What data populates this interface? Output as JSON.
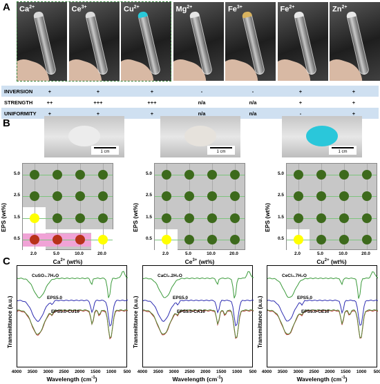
{
  "panelA": {
    "label": "A",
    "ions": [
      {
        "base": "Ca",
        "charge": "2+",
        "cap_color": "#d9d9d9"
      },
      {
        "base": "Ce",
        "charge": "3+",
        "cap_color": "#dcdcdc"
      },
      {
        "base": "Cu",
        "charge": "2+",
        "cap_color": "#29c8d8"
      },
      {
        "base": "Mg",
        "charge": "2+",
        "cap_color": "#e6e6e6"
      },
      {
        "base": "Fe",
        "charge": "3+",
        "cap_color": "#d8b25e"
      },
      {
        "base": "Fe",
        "charge": "2+",
        "cap_color": "#e8e8e8"
      },
      {
        "base": "Zn",
        "charge": "2+",
        "cap_color": "#e8e8e8"
      }
    ],
    "table": [
      {
        "label": "INVERSION",
        "values": [
          "+",
          "+",
          "+",
          "-",
          "-",
          "+",
          "+"
        ]
      },
      {
        "label": "STRENGTH",
        "values": [
          "++",
          "+++",
          "+++",
          "n/a",
          "n/a",
          "+",
          "+"
        ]
      },
      {
        "label": "UNIFORMITY",
        "values": [
          "+",
          "+",
          "+",
          "n/a",
          "n/a",
          "-",
          "+"
        ]
      }
    ]
  },
  "panelB": {
    "label": "B",
    "scale_bar": "1 cm",
    "gel_colors": [
      "#ececec",
      "#e6e2dc",
      "#2ac7da"
    ],
    "ylabel": "EPS (wt%)",
    "yticks": [
      "5.0",
      "2.5",
      "1.5",
      "0.5"
    ],
    "xticks": [
      "2.0",
      "5.0",
      "10.0",
      "20.0"
    ],
    "colors": {
      "green": "#3d6a1c",
      "yellow": "#ffff00",
      "red": "#b8321a",
      "pink": "#f0a3d6",
      "white": "#ffffff"
    },
    "grids": [
      {
        "xlabel_base": "Ca",
        "xlabel_sup": "2+",
        "xlabel_unit": " (wt%)",
        "dots": [
          [
            "green",
            "green",
            "green",
            "green"
          ],
          [
            "green",
            "green",
            "green",
            "green"
          ],
          [
            "yellow",
            "green",
            "green",
            "green"
          ],
          [
            "red",
            "red",
            "red",
            "yellow"
          ]
        ]
      },
      {
        "xlabel_base": "Ce",
        "xlabel_sup": "3+",
        "xlabel_unit": " (wt%)",
        "dots": [
          [
            "green",
            "green",
            "green",
            "green"
          ],
          [
            "green",
            "green",
            "green",
            "green"
          ],
          [
            "green",
            "green",
            "green",
            "green"
          ],
          [
            "yellow",
            "green",
            "green",
            "green"
          ]
        ]
      },
      {
        "xlabel_base": "Cu",
        "xlabel_sup": "2+",
        "xlabel_unit": " (wt%)",
        "dots": [
          [
            "green",
            "green",
            "green",
            "green"
          ],
          [
            "green",
            "green",
            "green",
            "green"
          ],
          [
            "green",
            "green",
            "green",
            "green"
          ],
          [
            "yellow",
            "green",
            "green",
            "green"
          ]
        ]
      }
    ]
  },
  "panelC": {
    "label": "C",
    "ylabel": "Transmittance (a.u.)",
    "xlabel": "Wavelength (cm",
    "xlabel_sup": "-1",
    "xlabel_end": ")",
    "xticks": [
      "4000",
      "3500",
      "3000",
      "2500",
      "2000",
      "1500",
      "1000",
      "500"
    ],
    "plots": [
      {
        "salt": "CuSO₄.7H₂O",
        "mid": "EPS5.0",
        "low": "EPS5.0-CU10"
      },
      {
        "salt": "CaCl₂.2H₂O",
        "mid": "EPS5.0",
        "low": "EPS5.0-CA10"
      },
      {
        "salt": "CeCl₃.7H₂O",
        "mid": "EPS5.0",
        "low": "EPS5.0-CE10"
      }
    ]
  }
}
